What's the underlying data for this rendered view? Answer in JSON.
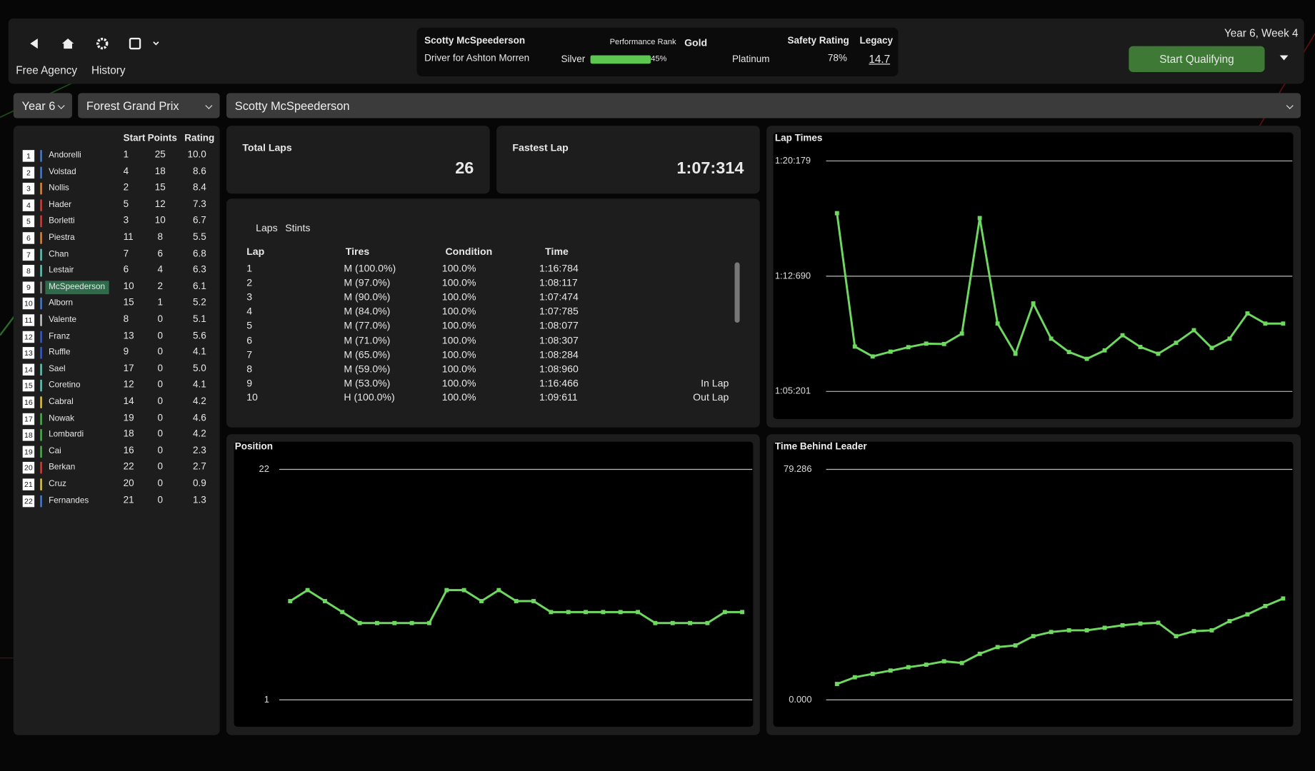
{
  "header": {
    "links": [
      "Free Agency",
      "History"
    ],
    "driver": {
      "name": "Scotty McSpeederson",
      "team": "Driver for Ashton Morren",
      "performance_rank_label": "Performance Rank",
      "rank": "Gold",
      "rank_from": "Silver",
      "progress": 45,
      "progress_label": "45%",
      "rank_to": "Platinum",
      "safety_rating_label": "Safety Rating",
      "safety_rating": "78%",
      "legacy_label": "Legacy",
      "legacy": "14.7"
    },
    "date": "Year 6, Week 4",
    "button": "Start Qualifying"
  },
  "filters": [
    "Year 6",
    "Forest Grand Prix",
    "Scotty McSpeederson"
  ],
  "standings": {
    "columns": [
      "Start",
      "Points",
      "Rating"
    ],
    "rows": [
      {
        "pos": "1",
        "name": "Andorelli",
        "color": "#4a7fd6",
        "start": "1",
        "points": "25",
        "rating": "10.0"
      },
      {
        "pos": "2",
        "name": "Volstad",
        "color": "#4a7fd6",
        "start": "4",
        "points": "18",
        "rating": "8.6"
      },
      {
        "pos": "3",
        "name": "Nollis",
        "color": "#e88a3a",
        "start": "2",
        "points": "15",
        "rating": "8.4"
      },
      {
        "pos": "4",
        "name": "Hader",
        "color": "#d84040",
        "start": "5",
        "points": "12",
        "rating": "7.3"
      },
      {
        "pos": "5",
        "name": "Borletti",
        "color": "#d84040",
        "start": "3",
        "points": "10",
        "rating": "6.7"
      },
      {
        "pos": "6",
        "name": "Piestra",
        "color": "#e88a3a",
        "start": "11",
        "points": "8",
        "rating": "5.5"
      },
      {
        "pos": "7",
        "name": "Chan",
        "color": "#5fd0c0",
        "start": "7",
        "points": "6",
        "rating": "6.8"
      },
      {
        "pos": "8",
        "name": "Lestair",
        "color": "#5fd0c0",
        "start": "6",
        "points": "4",
        "rating": "6.3"
      },
      {
        "pos": "9",
        "name": "McSpeederson",
        "color": "#9a9a9a",
        "start": "10",
        "points": "2",
        "rating": "6.1",
        "highlight": true
      },
      {
        "pos": "10",
        "name": "Alborn",
        "color": "#4a7fd6",
        "start": "15",
        "points": "1",
        "rating": "5.2"
      },
      {
        "pos": "11",
        "name": "Valente",
        "color": "#d0d0d0",
        "start": "8",
        "points": "0",
        "rating": "5.1"
      },
      {
        "pos": "12",
        "name": "Franz",
        "color": "#3a5fd0",
        "start": "13",
        "points": "0",
        "rating": "5.6"
      },
      {
        "pos": "13",
        "name": "Ruffle",
        "color": "#3a5fd0",
        "start": "9",
        "points": "0",
        "rating": "4.1"
      },
      {
        "pos": "14",
        "name": "Sael",
        "color": "#5fd0c0",
        "start": "17",
        "points": "0",
        "rating": "5.0"
      },
      {
        "pos": "15",
        "name": "Coretino",
        "color": "#5fd0c0",
        "start": "12",
        "points": "0",
        "rating": "4.1"
      },
      {
        "pos": "16",
        "name": "Cabral",
        "color": "#e8d040",
        "start": "14",
        "points": "0",
        "rating": "4.2"
      },
      {
        "pos": "17",
        "name": "Nowak",
        "color": "#4ab84a",
        "start": "19",
        "points": "0",
        "rating": "4.6"
      },
      {
        "pos": "18",
        "name": "Lombardi",
        "color": "#4ab84a",
        "start": "18",
        "points": "0",
        "rating": "4.2"
      },
      {
        "pos": "19",
        "name": "Cai",
        "color": "#4ab84a",
        "start": "16",
        "points": "0",
        "rating": "2.3"
      },
      {
        "pos": "20",
        "name": "Berkan",
        "color": "#d84040",
        "start": "22",
        "points": "0",
        "rating": "2.7"
      },
      {
        "pos": "21",
        "name": "Cruz",
        "color": "#e8d040",
        "start": "20",
        "points": "0",
        "rating": "0.9"
      },
      {
        "pos": "22",
        "name": "Fernandes",
        "color": "#4a7fd6",
        "start": "21",
        "points": "0",
        "rating": "1.3"
      }
    ]
  },
  "stats": [
    {
      "label": "Total Laps",
      "value": "26"
    },
    {
      "label": "Fastest Lap",
      "value": "1:07:314"
    }
  ],
  "laps_table": {
    "tabs": [
      "Laps",
      "Stints"
    ],
    "columns": [
      "Lap",
      "Tires",
      "Condition",
      "Time"
    ],
    "rows": [
      {
        "lap": "1",
        "tires": "M (100.0%)",
        "condition": "100.0%",
        "time": "1:16:784"
      },
      {
        "lap": "2",
        "tires": "M (97.0%)",
        "condition": "100.0%",
        "time": "1:08:117"
      },
      {
        "lap": "3",
        "tires": "M (90.0%)",
        "condition": "100.0%",
        "time": "1:07:474"
      },
      {
        "lap": "4",
        "tires": "M (84.0%)",
        "condition": "100.0%",
        "time": "1:07:785"
      },
      {
        "lap": "5",
        "tires": "M (77.0%)",
        "condition": "100.0%",
        "time": "1:08:077"
      },
      {
        "lap": "6",
        "tires": "M (71.0%)",
        "condition": "100.0%",
        "time": "1:08:307"
      },
      {
        "lap": "7",
        "tires": "M (65.0%)",
        "condition": "100.0%",
        "time": "1:08:284"
      },
      {
        "lap": "8",
        "tires": "M (59.0%)",
        "condition": "100.0%",
        "time": "1:08:960"
      },
      {
        "lap": "9",
        "tires": "M (53.0%)",
        "condition": "100.0%",
        "time": "1:16:466",
        "note": "In Lap"
      },
      {
        "lap": "10",
        "tires": "H (100.0%)",
        "condition": "100.0%",
        "time": "1:09:611",
        "note": "Out Lap"
      }
    ]
  },
  "chart_data": [
    {
      "type": "line",
      "title": "Lap Times",
      "x": [
        1,
        2,
        3,
        4,
        5,
        6,
        7,
        8,
        9,
        10,
        11,
        12,
        13,
        14,
        15,
        16,
        17,
        18,
        19,
        20,
        21,
        22,
        23,
        24,
        25,
        26
      ],
      "values": [
        76.784,
        68.117,
        67.474,
        67.785,
        68.077,
        68.307,
        68.284,
        68.96,
        76.466,
        69.611,
        67.65,
        70.92,
        68.63,
        67.76,
        67.32,
        67.87,
        68.85,
        68.09,
        67.65,
        68.36,
        69.18,
        68.03,
        68.63,
        70.27,
        69.61,
        69.61
      ],
      "color": "#6fd860",
      "xlim": [
        1,
        26
      ],
      "ylim": [
        65.201,
        80.179
      ],
      "yticks": [
        {
          "value": 80.179,
          "label": "1:20:179"
        },
        {
          "value": 72.69,
          "label": "1:12:690"
        },
        {
          "value": 65.201,
          "label": "1:05:201"
        }
      ],
      "grid": true
    },
    {
      "type": "line",
      "title": "Position",
      "x": [
        0,
        1,
        2,
        3,
        4,
        5,
        6,
        7,
        8,
        9,
        10,
        11,
        12,
        13,
        14,
        15,
        16,
        17,
        18,
        19,
        20,
        21,
        22,
        23,
        24,
        25,
        26
      ],
      "values": [
        10,
        11,
        10,
        9,
        8,
        8,
        8,
        8,
        8,
        11,
        11,
        10,
        11,
        10,
        10,
        9,
        9,
        9,
        9,
        9,
        9,
        8,
        8,
        8,
        8,
        9,
        9
      ],
      "color": "#6fd860",
      "xlim": [
        0,
        26
      ],
      "ylim": [
        1,
        22
      ],
      "yticks": [
        22,
        1
      ],
      "grid": true
    },
    {
      "type": "line",
      "title": "Time Behind Leader",
      "x": [
        1,
        2,
        3,
        4,
        5,
        6,
        7,
        8,
        9,
        10,
        11,
        12,
        13,
        14,
        15,
        16,
        17,
        18,
        19,
        20,
        21,
        22,
        23,
        24,
        25,
        26
      ],
      "values": [
        5.48,
        7.78,
        8.94,
        10.09,
        11.24,
        12.11,
        13.26,
        12.69,
        15.86,
        18.16,
        18.74,
        21.91,
        23.35,
        23.93,
        23.93,
        24.79,
        25.66,
        26.24,
        26.52,
        21.91,
        23.64,
        23.93,
        27.1,
        29.41,
        32.29,
        34.88
      ],
      "color": "#6fd860",
      "xlim": [
        1,
        26
      ],
      "ylim": [
        0,
        79.286
      ],
      "yticks": [
        {
          "value": 79.286,
          "label": "79.286"
        },
        {
          "value": 0,
          "label": "0.000"
        }
      ],
      "grid": true
    }
  ]
}
